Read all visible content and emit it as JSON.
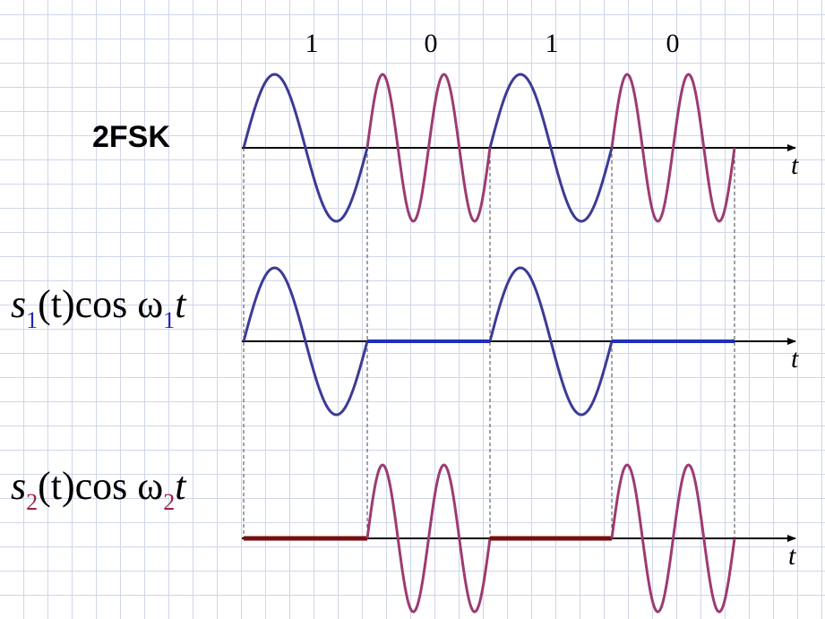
{
  "bits": [
    "1",
    "0",
    "1",
    "0"
  ],
  "title_label": "2FSK",
  "rows": [
    {
      "id": "fsk",
      "prefix": "",
      "sub1": "",
      "mid": "",
      "sub2": "",
      "suffix": "",
      "axis_label": "t"
    },
    {
      "id": "s1",
      "prefix": "s",
      "sub1": "1",
      "mid": "(t)cos ω",
      "sub2": "1",
      "suffix": "t",
      "axis_label": "t"
    },
    {
      "id": "s2",
      "prefix": "s",
      "sub1": "2",
      "mid": "(t)cos ω",
      "sub2": "2",
      "suffix": "t",
      "axis_label": "t"
    }
  ],
  "colors": {
    "f1_wave": "#3b3b96",
    "f2_wave": "#9c3b72",
    "s1_sub": "#2222bb",
    "s2_sub": "#9c2244",
    "s1_zero": "#1f2fb8",
    "s2_zero": "#7a0d0d",
    "axis": "#000000",
    "guide": "#444444",
    "grid": "#cfd6ea"
  }
}
